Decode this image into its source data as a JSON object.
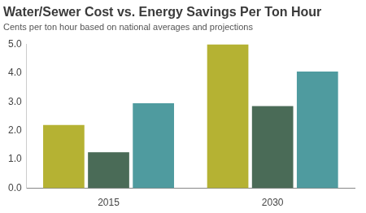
{
  "chart_data": {
    "type": "bar",
    "title": "Water/Sewer Cost vs. Energy Savings Per Ton Hour",
    "subtitle": "Cents per ton hour based on national averages and projections",
    "categories": [
      "2015",
      "2030"
    ],
    "series": [
      {
        "color": "#b5b233",
        "values": [
          2.2,
          5.0
        ]
      },
      {
        "color": "#4a6b57",
        "values": [
          1.25,
          2.85
        ]
      },
      {
        "color": "#4f9b9f",
        "values": [
          2.95,
          4.05
        ]
      }
    ],
    "ylim": [
      0,
      5
    ],
    "yticks": [
      {
        "value": 0,
        "label": "0.0"
      },
      {
        "value": 1,
        "label": "1.0"
      },
      {
        "value": 2,
        "label": "2.0"
      },
      {
        "value": 3,
        "label": "3.0"
      },
      {
        "value": 4,
        "label": "4.0"
      },
      {
        "value": 5,
        "label": "5.0"
      }
    ],
    "grid": false
  }
}
